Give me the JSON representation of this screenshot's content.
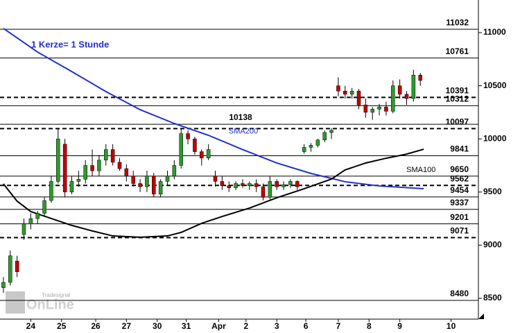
{
  "chart_data": {
    "type": "candlestick",
    "annotation": "1 Kerze= 1 Stunde",
    "logo": {
      "small": "Tradesignal",
      "big": "OnLine"
    },
    "xlim": [
      -1,
      139
    ],
    "ylim": [
      8304,
      11307
    ],
    "yticks": [
      {
        "value": 8500,
        "label": "8500"
      },
      {
        "value": 9000,
        "label": "9000"
      },
      {
        "value": 9500,
        "label": "9500"
      },
      {
        "value": 10000,
        "label": "10000"
      },
      {
        "value": 10500,
        "label": "10500"
      },
      {
        "value": 11000,
        "label": "11000"
      }
    ],
    "xticks": [
      {
        "value": 8,
        "label": "24"
      },
      {
        "value": 17,
        "label": "25"
      },
      {
        "value": 27,
        "label": "26"
      },
      {
        "value": 36,
        "label": "27"
      },
      {
        "value": 45,
        "label": "30"
      },
      {
        "value": 53.5,
        "label": "31"
      },
      {
        "value": 63,
        "label": "Apr"
      },
      {
        "value": 71,
        "label": "2"
      },
      {
        "value": 80,
        "label": "3"
      },
      {
        "value": 88.5,
        "label": "6"
      },
      {
        "value": 98,
        "label": "7"
      },
      {
        "value": 107,
        "label": "8"
      },
      {
        "value": 116,
        "label": "9"
      },
      {
        "value": 131,
        "label": "10"
      }
    ],
    "up_color": "#2e9a2e",
    "down_color": "#c00000",
    "levels": [
      {
        "value": 11032,
        "style": "solid"
      },
      {
        "value": 10761,
        "style": "solid"
      },
      {
        "value": 10391,
        "style": "dashed"
      },
      {
        "value": 10312,
        "style": "solid"
      },
      {
        "value": 10138,
        "style": "solid",
        "align": "center"
      },
      {
        "value": 10097,
        "style": "dashed"
      },
      {
        "value": 9841,
        "style": "solid"
      },
      {
        "value": 9650,
        "style": "solid"
      },
      {
        "value": 9562,
        "style": "dashed"
      },
      {
        "value": 9454,
        "style": "solid"
      },
      {
        "value": 9337,
        "style": "solid"
      },
      {
        "value": 9201,
        "style": "solid"
      },
      {
        "value": 9071,
        "style": "dashed"
      },
      {
        "value": 8480,
        "style": "solid"
      }
    ],
    "candles": {
      "x": [
        0,
        2,
        4,
        6,
        8,
        10,
        12,
        14,
        16,
        18,
        20,
        22,
        24,
        26,
        28,
        30,
        32,
        34,
        36,
        38,
        40,
        42,
        44,
        46,
        48,
        50,
        52,
        54,
        56,
        58,
        60,
        62,
        64,
        66,
        68,
        70,
        72,
        74,
        76,
        78,
        80,
        82,
        84,
        86,
        88,
        90,
        92,
        94,
        96,
        98,
        100,
        102,
        104,
        106,
        108,
        110,
        112,
        114,
        116,
        118,
        120,
        122
      ],
      "ohlc": [
        [
          8600,
          8700,
          8550,
          8650
        ],
        [
          8650,
          8950,
          8620,
          8900
        ],
        [
          8850,
          8900,
          8700,
          8750
        ],
        [
          9100,
          9250,
          9050,
          9200
        ],
        [
          9200,
          9300,
          9150,
          9250
        ],
        [
          9250,
          9320,
          9200,
          9300
        ],
        [
          9300,
          9450,
          9280,
          9420
        ],
        [
          9420,
          9650,
          9400,
          9600
        ],
        [
          9600,
          10100,
          9580,
          10000
        ],
        [
          9950,
          10000,
          9450,
          9500
        ],
        [
          9500,
          9650,
          9480,
          9600
        ],
        [
          9600,
          9700,
          9550,
          9620
        ],
        [
          9620,
          9800,
          9580,
          9750
        ],
        [
          9750,
          9900,
          9650,
          9700
        ],
        [
          9700,
          9850,
          9650,
          9800
        ],
        [
          9800,
          9950,
          9750,
          9900
        ],
        [
          9900,
          9950,
          9750,
          9780
        ],
        [
          9780,
          9820,
          9700,
          9720
        ],
        [
          9720,
          9760,
          9600,
          9650
        ],
        [
          9650,
          9700,
          9550,
          9580
        ],
        [
          9580,
          9620,
          9500,
          9550
        ],
        [
          9550,
          9700,
          9500,
          9650
        ],
        [
          9650,
          9680,
          9450,
          9480
        ],
        [
          9480,
          9620,
          9450,
          9600
        ],
        [
          9600,
          9700,
          9560,
          9650
        ],
        [
          9650,
          9800,
          9620,
          9750
        ],
        [
          9750,
          10100,
          9720,
          10050
        ],
        [
          10050,
          10080,
          9950,
          10000
        ],
        [
          10000,
          10020,
          9850,
          9880
        ],
        [
          9880,
          9900,
          9750,
          9820
        ],
        [
          9820,
          9950,
          9800,
          9900
        ],
        [
          9650,
          9700,
          9550,
          9600
        ],
        [
          9600,
          9650,
          9520,
          9560
        ],
        [
          9560,
          9600,
          9500,
          9540
        ],
        [
          9540,
          9600,
          9520,
          9580
        ],
        [
          9580,
          9620,
          9540,
          9560
        ],
        [
          9560,
          9600,
          9520,
          9580
        ],
        [
          9580,
          9620,
          9500,
          9550
        ],
        [
          9550,
          9580,
          9420,
          9450
        ],
        [
          9450,
          9650,
          9430,
          9600
        ],
        [
          9600,
          9620,
          9520,
          9550
        ],
        [
          9550,
          9600,
          9520,
          9570
        ],
        [
          9570,
          9620,
          9540,
          9600
        ],
        [
          9600,
          9610,
          9520,
          9550
        ],
        [
          9880,
          9950,
          9860,
          9920
        ],
        [
          9920,
          9960,
          9880,
          9940
        ],
        [
          9940,
          10000,
          9920,
          9990
        ],
        [
          9990,
          10080,
          9970,
          10060
        ],
        [
          10060,
          10100,
          10000,
          10080
        ],
        [
          10500,
          10580,
          10400,
          10450
        ],
        [
          10450,
          10500,
          10380,
          10420
        ],
        [
          10420,
          10480,
          10380,
          10450
        ],
        [
          10450,
          10470,
          10280,
          10320
        ],
        [
          10320,
          10380,
          10200,
          10250
        ],
        [
          10250,
          10300,
          10180,
          10280
        ],
        [
          10280,
          10330,
          10220,
          10300
        ],
        [
          10300,
          10350,
          10220,
          10260
        ],
        [
          10260,
          10550,
          10240,
          10500
        ],
        [
          10500,
          10560,
          10380,
          10420
        ],
        [
          10420,
          10450,
          10320,
          10380
        ],
        [
          10380,
          10650,
          10350,
          10600
        ],
        [
          10600,
          10620,
          10500,
          10550
        ]
      ]
    },
    "series": [
      {
        "name": "SMA200",
        "color": "#1f2fcc",
        "x": [
          0,
          10,
          20,
          30,
          40,
          50,
          60,
          70,
          80,
          90,
          100,
          110,
          123
        ],
        "values": [
          11040,
          10817,
          10634,
          10445,
          10275,
          10145,
          10034,
          9900,
          9773,
          9675,
          9597,
          9557,
          9531
        ]
      },
      {
        "name": "SMA100",
        "color": "#000000",
        "x": [
          0,
          4,
          8,
          14,
          20,
          26,
          32,
          40,
          48,
          52,
          58,
          64,
          72,
          80,
          88,
          96,
          100,
          106,
          112,
          118,
          123
        ],
        "values": [
          9577,
          9414,
          9316,
          9251,
          9186,
          9134,
          9087,
          9074,
          9087,
          9120,
          9205,
          9270,
          9349,
          9446,
          9531,
          9622,
          9708,
          9773,
          9818,
          9857,
          9903
        ]
      }
    ]
  }
}
